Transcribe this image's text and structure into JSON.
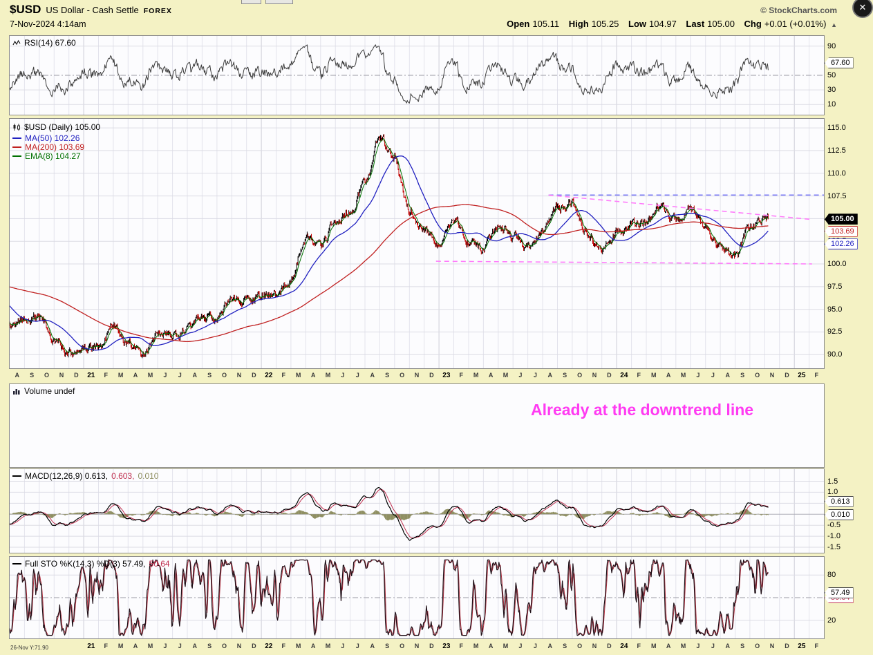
{
  "header": {
    "symbol": "$USD",
    "name": "US Dollar - Cash Settle",
    "exchange": "FOREX",
    "credit": "© StockCharts.com",
    "datetime": "7-Nov-2024 4:14am",
    "quote": {
      "open_label": "Open",
      "open": "105.11",
      "high_label": "High",
      "high": "105.25",
      "low_label": "Low",
      "low": "104.97",
      "last_label": "Last",
      "last": "105.00",
      "chg_label": "Chg",
      "chg": "+0.01 (+0.01%)",
      "direction_arrow": "▲"
    },
    "close_button": "✕"
  },
  "panels": {
    "rsi": {
      "label": "RSI(14) 67.60"
    },
    "price": {
      "label": "$USD (Daily) 105.00",
      "legend_ma50": "MA(50) 102.26",
      "legend_ma200": "MA(200) 103.69",
      "legend_ema8": "EMA(8) 104.27"
    },
    "volume": {
      "label": "Volume undef",
      "annotation": "Already at the downtrend line",
      "annotation_color": "#FF3BF2"
    },
    "macd": {
      "label_main": "MACD(12,26,9) 0.613,",
      "label_signal": "0.603,",
      "label_hist": "0.010"
    },
    "sto": {
      "label_main": "Full STO %K(14,3) %D(3) 57.49,",
      "label_d": "50.64"
    }
  },
  "badges": {
    "rsi": "67.60",
    "price_last": "105.00",
    "price_ma200": "103.69",
    "price_ma50": "102.26",
    "macd_main": "0.613",
    "macd_hist": "0.010",
    "sto_k": "57.49",
    "sto_d": "50.64"
  },
  "colors": {
    "background": "#F4F2C4",
    "ma50": "#2020C0",
    "ma200": "#C02020",
    "ema8": "#007000",
    "candle_up": "#000000",
    "candle_down": "#C00000",
    "macd_line": "#000000",
    "macd_signal": "#C03050",
    "macd_hist": "#8F8F62",
    "rsi_line": "#3C3C3C",
    "trendline_magenta": "#FF7BFB",
    "trendline_blue": "#7A7AF8",
    "annotation": "#FF3BF2"
  },
  "chart_data": {
    "type": "candlestick multi-panel (RSI, price+moving averages, volume, MACD, full stochastic)",
    "months_axis": [
      "A",
      "S",
      "O",
      "N",
      "D",
      "21",
      "F",
      "M",
      "A",
      "M",
      "J",
      "J",
      "A",
      "S",
      "O",
      "N",
      "D",
      "22",
      "F",
      "M",
      "A",
      "M",
      "J",
      "J",
      "A",
      "S",
      "O",
      "N",
      "D",
      "23",
      "F",
      "M",
      "A",
      "M",
      "J",
      "J",
      "A",
      "S",
      "O",
      "N",
      "D",
      "24",
      "F",
      "M",
      "A",
      "M",
      "J",
      "J",
      "A",
      "S",
      "O",
      "N",
      "D",
      "25",
      "F"
    ],
    "months_bottom_start_index": 5,
    "bottom_left_label": "26-Nov Y:71.90",
    "price_ylim": [
      88.5,
      116
    ],
    "price_yticks": [
      "115.0",
      "112.5",
      "110.0",
      "107.5",
      "105.0",
      "102.5",
      "100.0",
      "97.5",
      "95.0",
      "92.5",
      "90.0"
    ],
    "rsi_yticks": [
      "90",
      "50",
      "30",
      "10"
    ],
    "macd_yticks": [
      "1.5",
      "1.0",
      "-0.5",
      "-1.0",
      "-1.5"
    ],
    "sto_yticks": [
      "80",
      "20"
    ],
    "pre_history_monthly": [
      97.3,
      97.5,
      97.2,
      97.6,
      98.2,
      99.0,
      99.4,
      98.3,
      97.3,
      94.6
    ],
    "monthly_close": [
      93.4,
      93.9,
      94.0,
      91.8,
      89.9,
      90.6,
      90.9,
      93.2,
      91.3,
      90.0,
      92.4,
      92.1,
      92.6,
      94.2,
      94.1,
      96.0,
      95.7,
      96.5,
      96.7,
      98.3,
      103.0,
      101.8,
      104.7,
      105.9,
      108.8,
      114.0,
      111.5,
      106.0,
      103.5,
      102.1,
      104.9,
      102.5,
      101.7,
      104.3,
      102.9,
      101.9,
      103.6,
      106.2,
      106.7,
      103.5,
      101.3,
      103.4,
      104.2,
      104.5,
      106.2,
      104.7,
      105.9,
      104.1,
      101.7,
      100.8,
      104.0,
      105.0
    ],
    "last_day_month_index": 51.25,
    "indicators": {
      "rsi14_last": 67.6,
      "ma50_last": 102.26,
      "ma200_last": 103.69,
      "ema8_last": 104.27,
      "macd_last": 0.613,
      "macd_signal_last": 0.603,
      "macd_hist_last": 0.01,
      "sto_k_last": 57.49,
      "sto_d_last": 50.64
    },
    "ohlc_last": {
      "open": 105.11,
      "high": 105.25,
      "low": 104.97,
      "last": 105.0,
      "chg": "+0.01 (+0.01%)"
    },
    "trendlines": [
      {
        "name": "resistance-horizontal",
        "color": "#7A7AF8",
        "from_month": 36.4,
        "from_val": 107.6,
        "to_month": 55,
        "to_val": 107.6
      },
      {
        "name": "downtrend-line",
        "color": "#FF7BFB",
        "from_month": 36.4,
        "from_val": 107.6,
        "to_month": 54.2,
        "to_val": 104.9
      },
      {
        "name": "support-line",
        "color": "#FF7BFB",
        "from_month": 28.8,
        "from_val": 100.3,
        "to_month": 54.2,
        "to_val": 100.0
      }
    ]
  }
}
